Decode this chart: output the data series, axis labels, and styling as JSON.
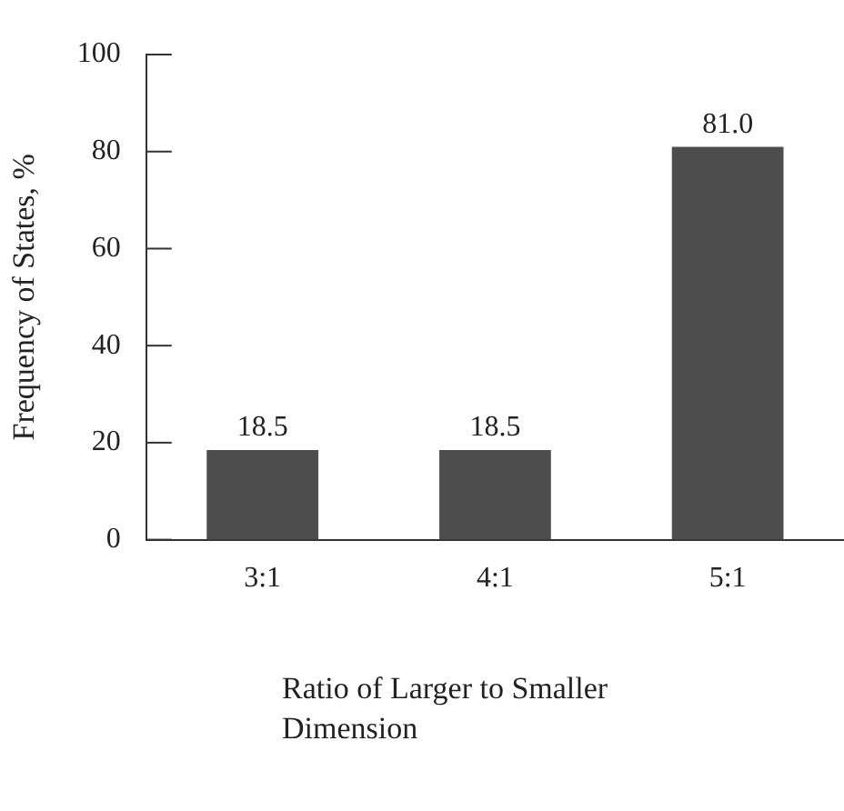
{
  "chart_data": {
    "type": "bar",
    "xlabel": "Ratio of Larger to Smaller Dimension",
    "ylabel": "Frequency of States, %",
    "categories": [
      "3:1",
      "4:1",
      "5:1"
    ],
    "values": [
      18.5,
      18.5,
      81.0
    ],
    "value_labels": [
      "18.5",
      "18.5",
      "81.0"
    ],
    "color": "#4d4d4d",
    "ylim": [
      0,
      100
    ],
    "yticks": [
      0,
      20,
      40,
      60,
      80,
      100
    ],
    "grid": false,
    "legend": false
  }
}
